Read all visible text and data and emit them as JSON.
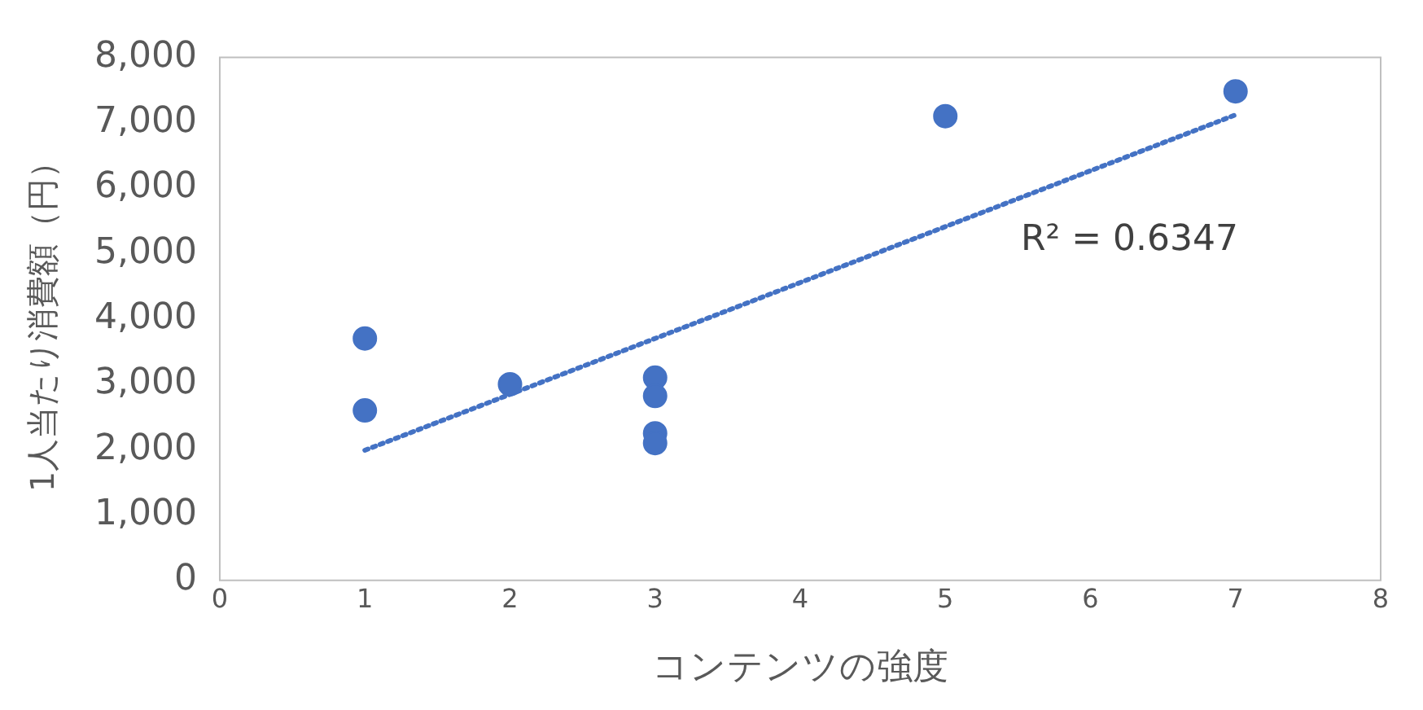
{
  "chart_data": {
    "type": "scatter",
    "xlabel": "コンテンツの強度",
    "ylabel": "1人当たり消費額（円）",
    "x": [
      1,
      1,
      2,
      3,
      3,
      3,
      3,
      5,
      7
    ],
    "series": [
      {
        "color": "#4472c4",
        "marker": "circle",
        "values": [
          3700,
          2600,
          3000,
          3100,
          2820,
          2250,
          2100,
          7100,
          7480
        ]
      },
      {
        "type": "line",
        "color": "#4472c4",
        "marker": "none",
        "line_style": "dotted",
        "x": [
          1,
          7
        ],
        "values": [
          1990,
          7120
        ]
      }
    ],
    "xlim": [
      0,
      8
    ],
    "xticks": [
      0,
      1,
      2,
      3,
      4,
      5,
      6,
      7,
      8
    ],
    "ylim": [
      0,
      8000
    ],
    "yticks": [
      {
        "value": 0,
        "label": "0"
      },
      {
        "value": 1000,
        "label": "1,000"
      },
      {
        "value": 2000,
        "label": "2,000"
      },
      {
        "value": 3000,
        "label": "3,000"
      },
      {
        "value": 4000,
        "label": "4,000"
      },
      {
        "value": 5000,
        "label": "5,000"
      },
      {
        "value": 6000,
        "label": "6,000"
      },
      {
        "value": 7000,
        "label": "7,000"
      },
      {
        "value": 8000,
        "label": "8,000"
      }
    ],
    "grid": false,
    "legend": false,
    "annotations": [
      "R² = 0.6347"
    ]
  }
}
